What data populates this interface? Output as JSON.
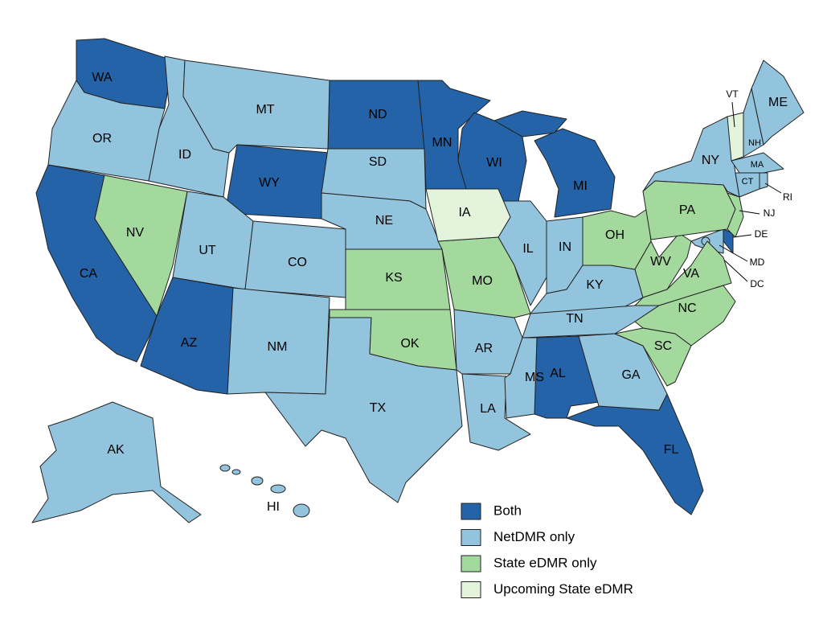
{
  "legend": [
    {
      "label": "Both",
      "color": "#2463a8",
      "states": [
        "WA",
        "ND",
        "MN",
        "WI",
        "MI",
        "WY",
        "CA",
        "AZ",
        "AL",
        "FL",
        "DE"
      ]
    },
    {
      "label": "NetDMR only",
      "color": "#93c4de",
      "states": [
        "OR",
        "ID",
        "MT",
        "SD",
        "NE",
        "UT",
        "CO",
        "NM",
        "TX",
        "AR",
        "LA",
        "MS",
        "IL",
        "IN",
        "KY",
        "TN",
        "GA",
        "NY",
        "ME",
        "NH",
        "MA",
        "CT",
        "RI",
        "MD",
        "DC",
        "AK",
        "HI"
      ]
    },
    {
      "label": "State eDMR only",
      "color": "#a3d99d",
      "states": [
        "NV",
        "KS",
        "MO",
        "OK",
        "OH",
        "WV",
        "VA",
        "NC",
        "SC",
        "PA",
        "NJ"
      ]
    },
    {
      "label": "Upcoming State eDMR",
      "color": "#e3f3dc",
      "states": [
        "IA",
        "VT"
      ]
    }
  ]
}
